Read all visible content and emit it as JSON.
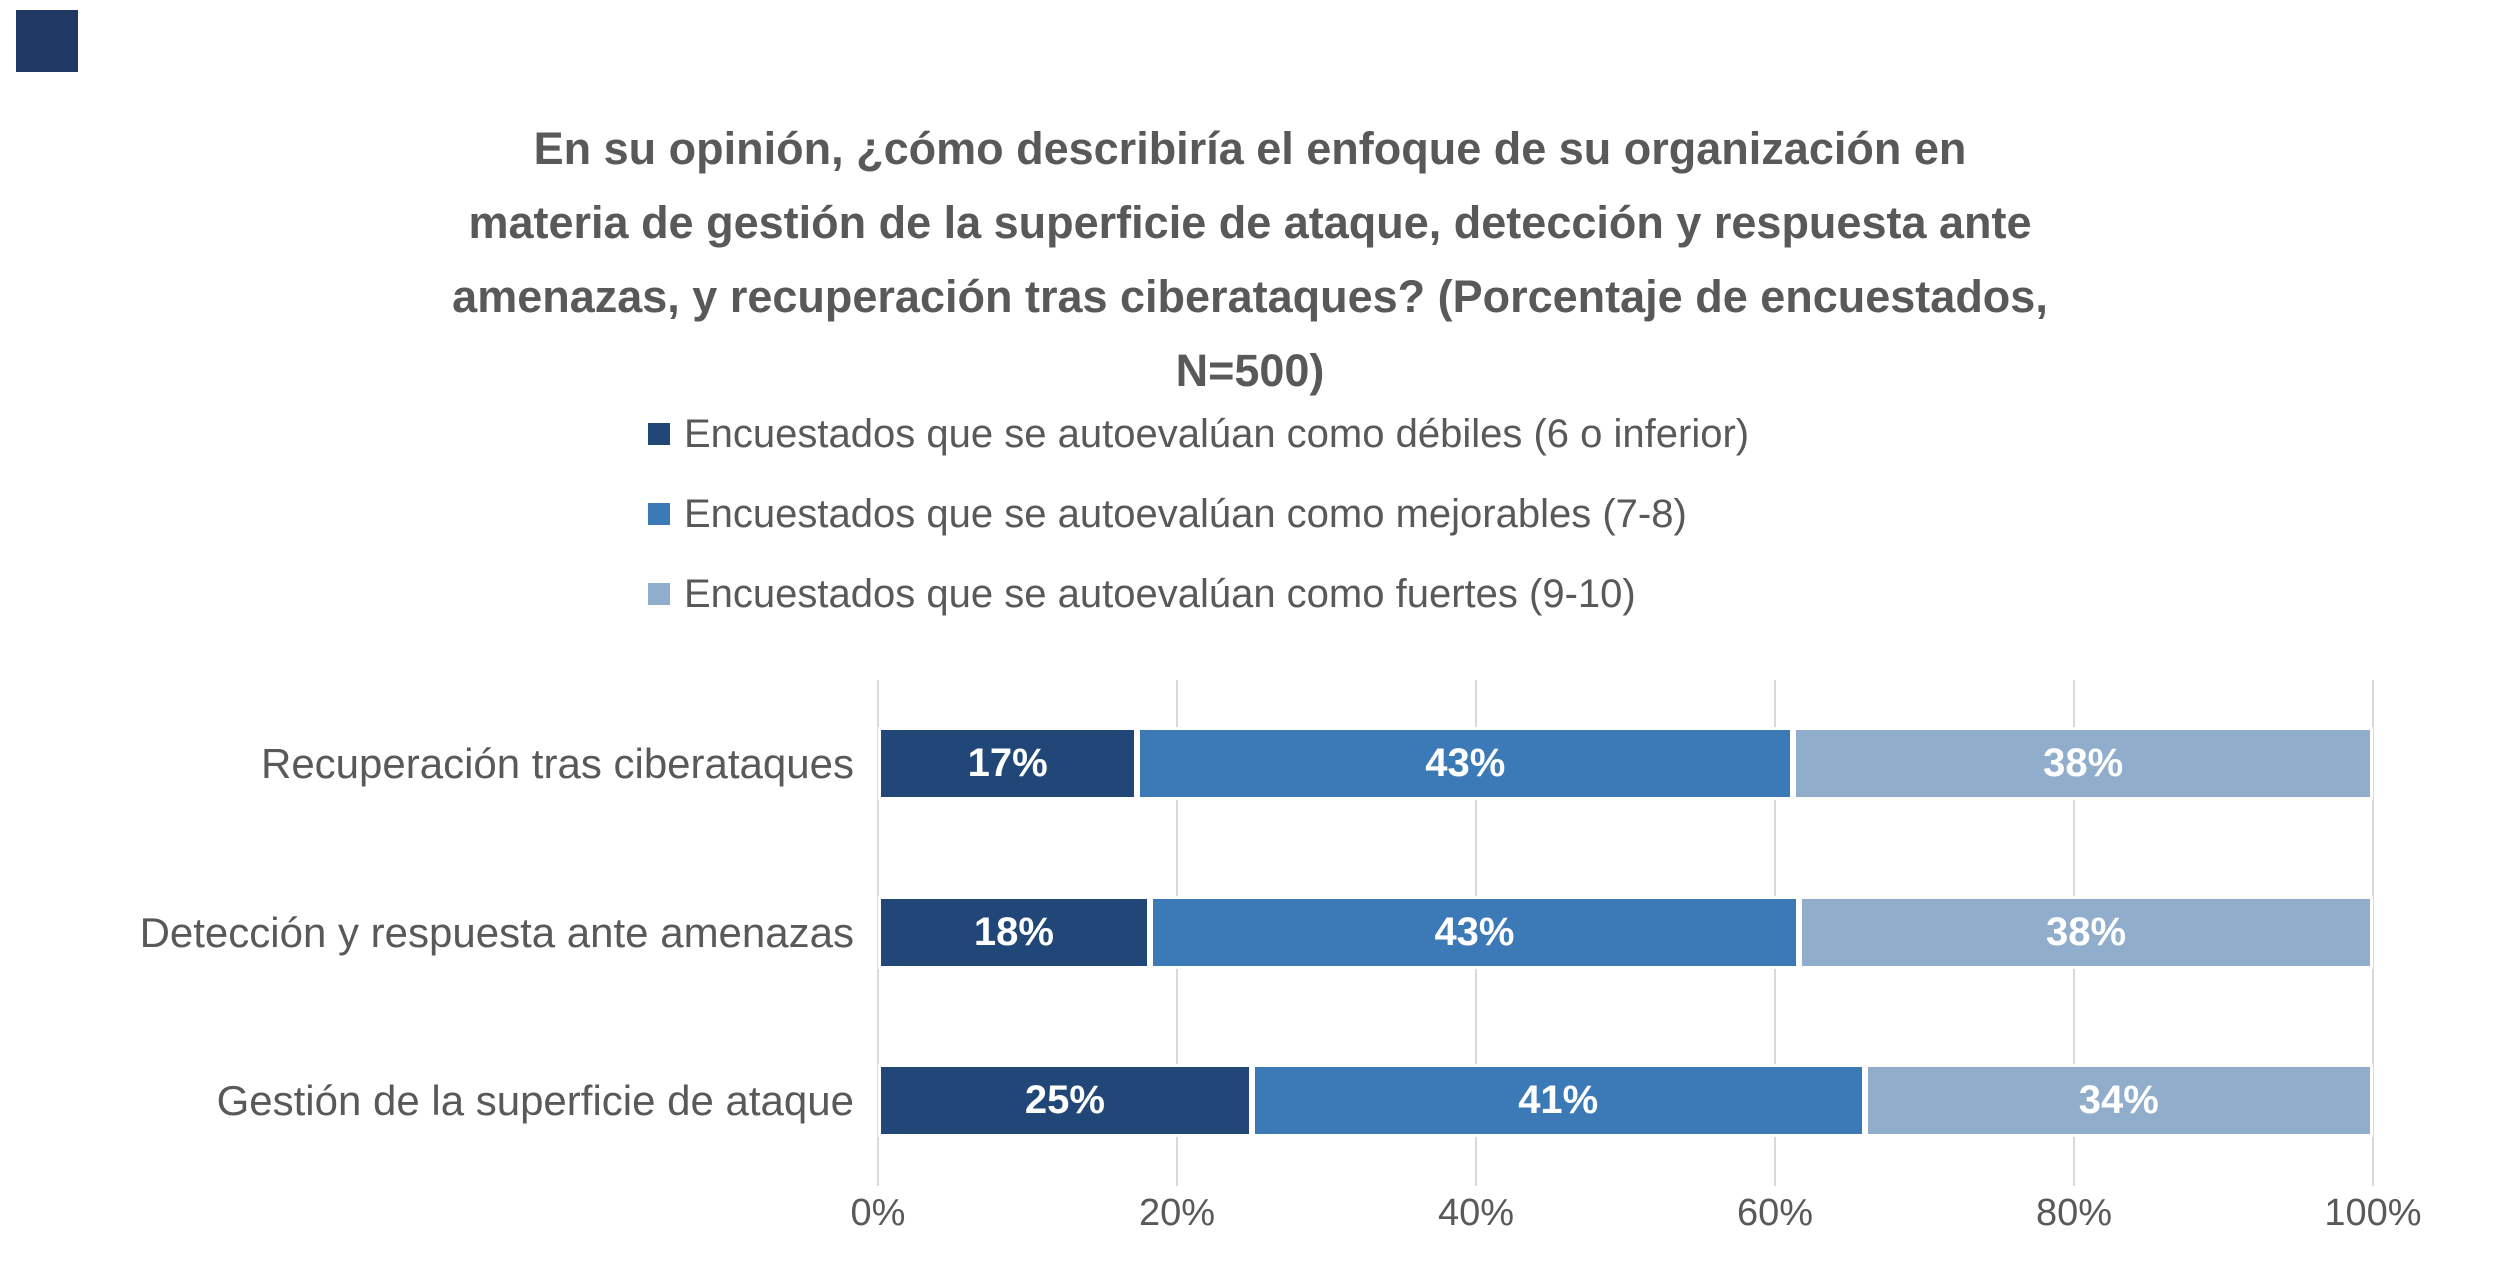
{
  "page": {
    "background": "#ffffff"
  },
  "corner_square": {
    "color": "#1F3864"
  },
  "title": {
    "color": "#595959",
    "lines": [
      "En su opinión, ¿cómo describiría el enfoque de su organización en",
      "materia de gestión de la superficie de ataque, detección y respuesta ante",
      "amenazas, y recuperación tras ciberataques? (Porcentaje de encuestados,",
      "N=500)"
    ]
  },
  "legend": {
    "items": [
      {
        "label": "Encuestados que se autoevalúan como débiles (6 o inferior)",
        "color": "#204778"
      },
      {
        "label": "Encuestados que se autoevalúan como mejorables (7-8)",
        "color": "#3B79B7"
      },
      {
        "label": "Encuestados que se autoevalúan como fuertes (9-10)",
        "color": "#90AECC"
      }
    ]
  },
  "chart_data": {
    "type": "bar",
    "orientation": "horizontal",
    "stacked": true,
    "normalized_to_100": true,
    "title": "En su opinión, ¿cómo describiría el enfoque de su organización en materia de gestión de la superficie de ataque, detección y respuesta ante amenazas, y recuperación tras ciberataques? (Porcentaje de encuestados, N=500)",
    "categories": [
      "Recuperación tras ciberataques",
      "Detección y respuesta ante amenazas",
      "Gestión de la superficie de ataque"
    ],
    "series": [
      {
        "name": "Encuestados que se autoevalúan como débiles (6 o inferior)",
        "color": "#204778",
        "values": [
          17,
          18,
          25
        ]
      },
      {
        "name": "Encuestados que se autoevalúan como mejorables (7-8)",
        "color": "#3B79B7",
        "values": [
          43,
          43,
          41
        ]
      },
      {
        "name": "Encuestados que se autoevalúan como fuertes (9-10)",
        "color": "#90AECC",
        "values": [
          38,
          38,
          34
        ]
      }
    ],
    "value_suffix": "%",
    "x_axis": {
      "ticks": [
        "0%",
        "20%",
        "40%",
        "60%",
        "80%",
        "100%"
      ],
      "range": [
        0,
        100
      ],
      "gridlines": true,
      "gridline_color": "#d9d9d9"
    },
    "legend_position": "top-left-of-plot"
  }
}
